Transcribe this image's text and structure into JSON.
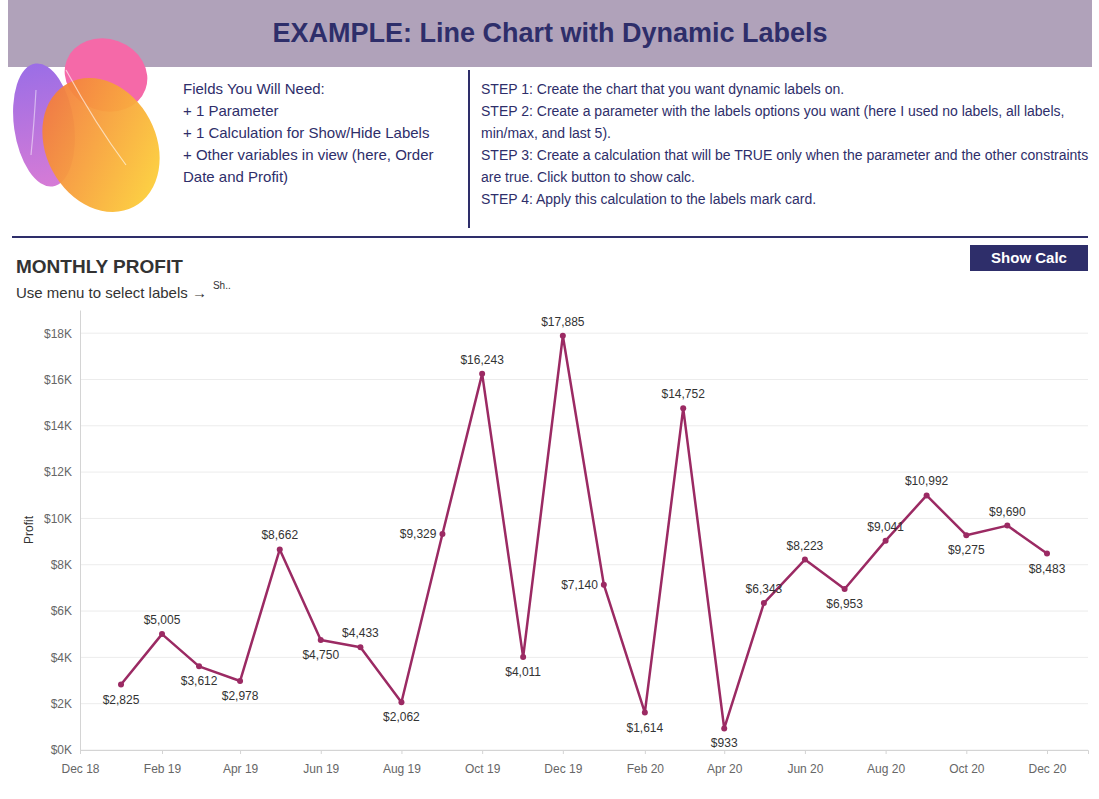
{
  "page": {
    "title": "EXAMPLE: Line Chart with Dynamic Labels",
    "fields_heading": "Fields You Will Need:",
    "fields": [
      "+ 1 Parameter",
      "+ 1 Calculation for Show/Hide Labels",
      "+ Other variables in view (here, Order Date and Profit)"
    ],
    "steps": [
      "STEP 1: Create the chart that you want dynamic labels on.",
      "STEP 2: Create a parameter with the labels options you want (here I used no labels, all labels, min/max, and last 5).",
      "STEP 3: Create a calculation that will be TRUE only when the parameter and the other constraints are true. Click button to show calc.",
      "STEP 4: Apply this calculation to the labels mark card."
    ],
    "button": "Show Calc"
  },
  "chart_data": {
    "type": "line",
    "title": "MONTHLY PROFIT",
    "subtitle": "Use menu to select labels →",
    "parameter_label": "Sh..",
    "y_label": "Profit",
    "x": [
      "2019-01",
      "2019-02",
      "2019-03",
      "2019-04",
      "2019-05",
      "2019-06",
      "2019-07",
      "2019-08",
      "2019-09",
      "2019-10",
      "2019-11",
      "2019-12",
      "2020-01",
      "2020-02",
      "2020-03",
      "2020-04",
      "2020-05",
      "2020-06",
      "2020-07",
      "2020-08",
      "2020-09",
      "2020-10",
      "2020-11",
      "2020-12"
    ],
    "values": [
      2825,
      5005,
      3612,
      2978,
      8662,
      4750,
      4433,
      2062,
      9329,
      16243,
      4011,
      17885,
      7140,
      1614,
      14752,
      933,
      6343,
      8223,
      6953,
      9041,
      10992,
      9275,
      9690,
      8483
    ],
    "value_labels": [
      "$2,825",
      "$5,005",
      "$3,612",
      "$2,978",
      "$8,662",
      "$4,750",
      "$4,433",
      "$2,062",
      "$9,329",
      "$16,243",
      "$4,011",
      "$17,885",
      "$7,140",
      "$1,614",
      "$14,752",
      "$933",
      "$6,343",
      "$8,223",
      "$6,953",
      "$9,041",
      "$10,992",
      "$9,275",
      "$9,690",
      "$8,483"
    ],
    "data_labels": true,
    "color": "#9b2a63",
    "marker": "circle",
    "grid": true,
    "xlim": [
      "2018-12",
      "2021-01"
    ],
    "xticks": [
      {
        "value": "2018-12",
        "label": "Dec 18"
      },
      {
        "value": "2019-02",
        "label": "Feb 19"
      },
      {
        "value": "2019-04",
        "label": "Apr 19"
      },
      {
        "value": "2019-06",
        "label": "Jun 19"
      },
      {
        "value": "2019-08",
        "label": "Aug 19"
      },
      {
        "value": "2019-10",
        "label": "Oct 19"
      },
      {
        "value": "2019-12",
        "label": "Dec 19"
      },
      {
        "value": "2020-02",
        "label": "Feb 20"
      },
      {
        "value": "2020-04",
        "label": "Apr 20"
      },
      {
        "value": "2020-06",
        "label": "Jun 20"
      },
      {
        "value": "2020-08",
        "label": "Aug 20"
      },
      {
        "value": "2020-10",
        "label": "Oct 20"
      },
      {
        "value": "2020-12",
        "label": "Dec 20"
      }
    ],
    "ylim": [
      0,
      19000
    ],
    "yticks": [
      {
        "value": 0,
        "label": "$0K"
      },
      {
        "value": 2000,
        "label": "$2K"
      },
      {
        "value": 4000,
        "label": "$4K"
      },
      {
        "value": 6000,
        "label": "$6K"
      },
      {
        "value": 8000,
        "label": "$8K"
      },
      {
        "value": 10000,
        "label": "$10K"
      },
      {
        "value": 12000,
        "label": "$12K"
      },
      {
        "value": 14000,
        "label": "$14K"
      },
      {
        "value": 16000,
        "label": "$16K"
      },
      {
        "value": 18000,
        "label": "$18K"
      }
    ]
  }
}
